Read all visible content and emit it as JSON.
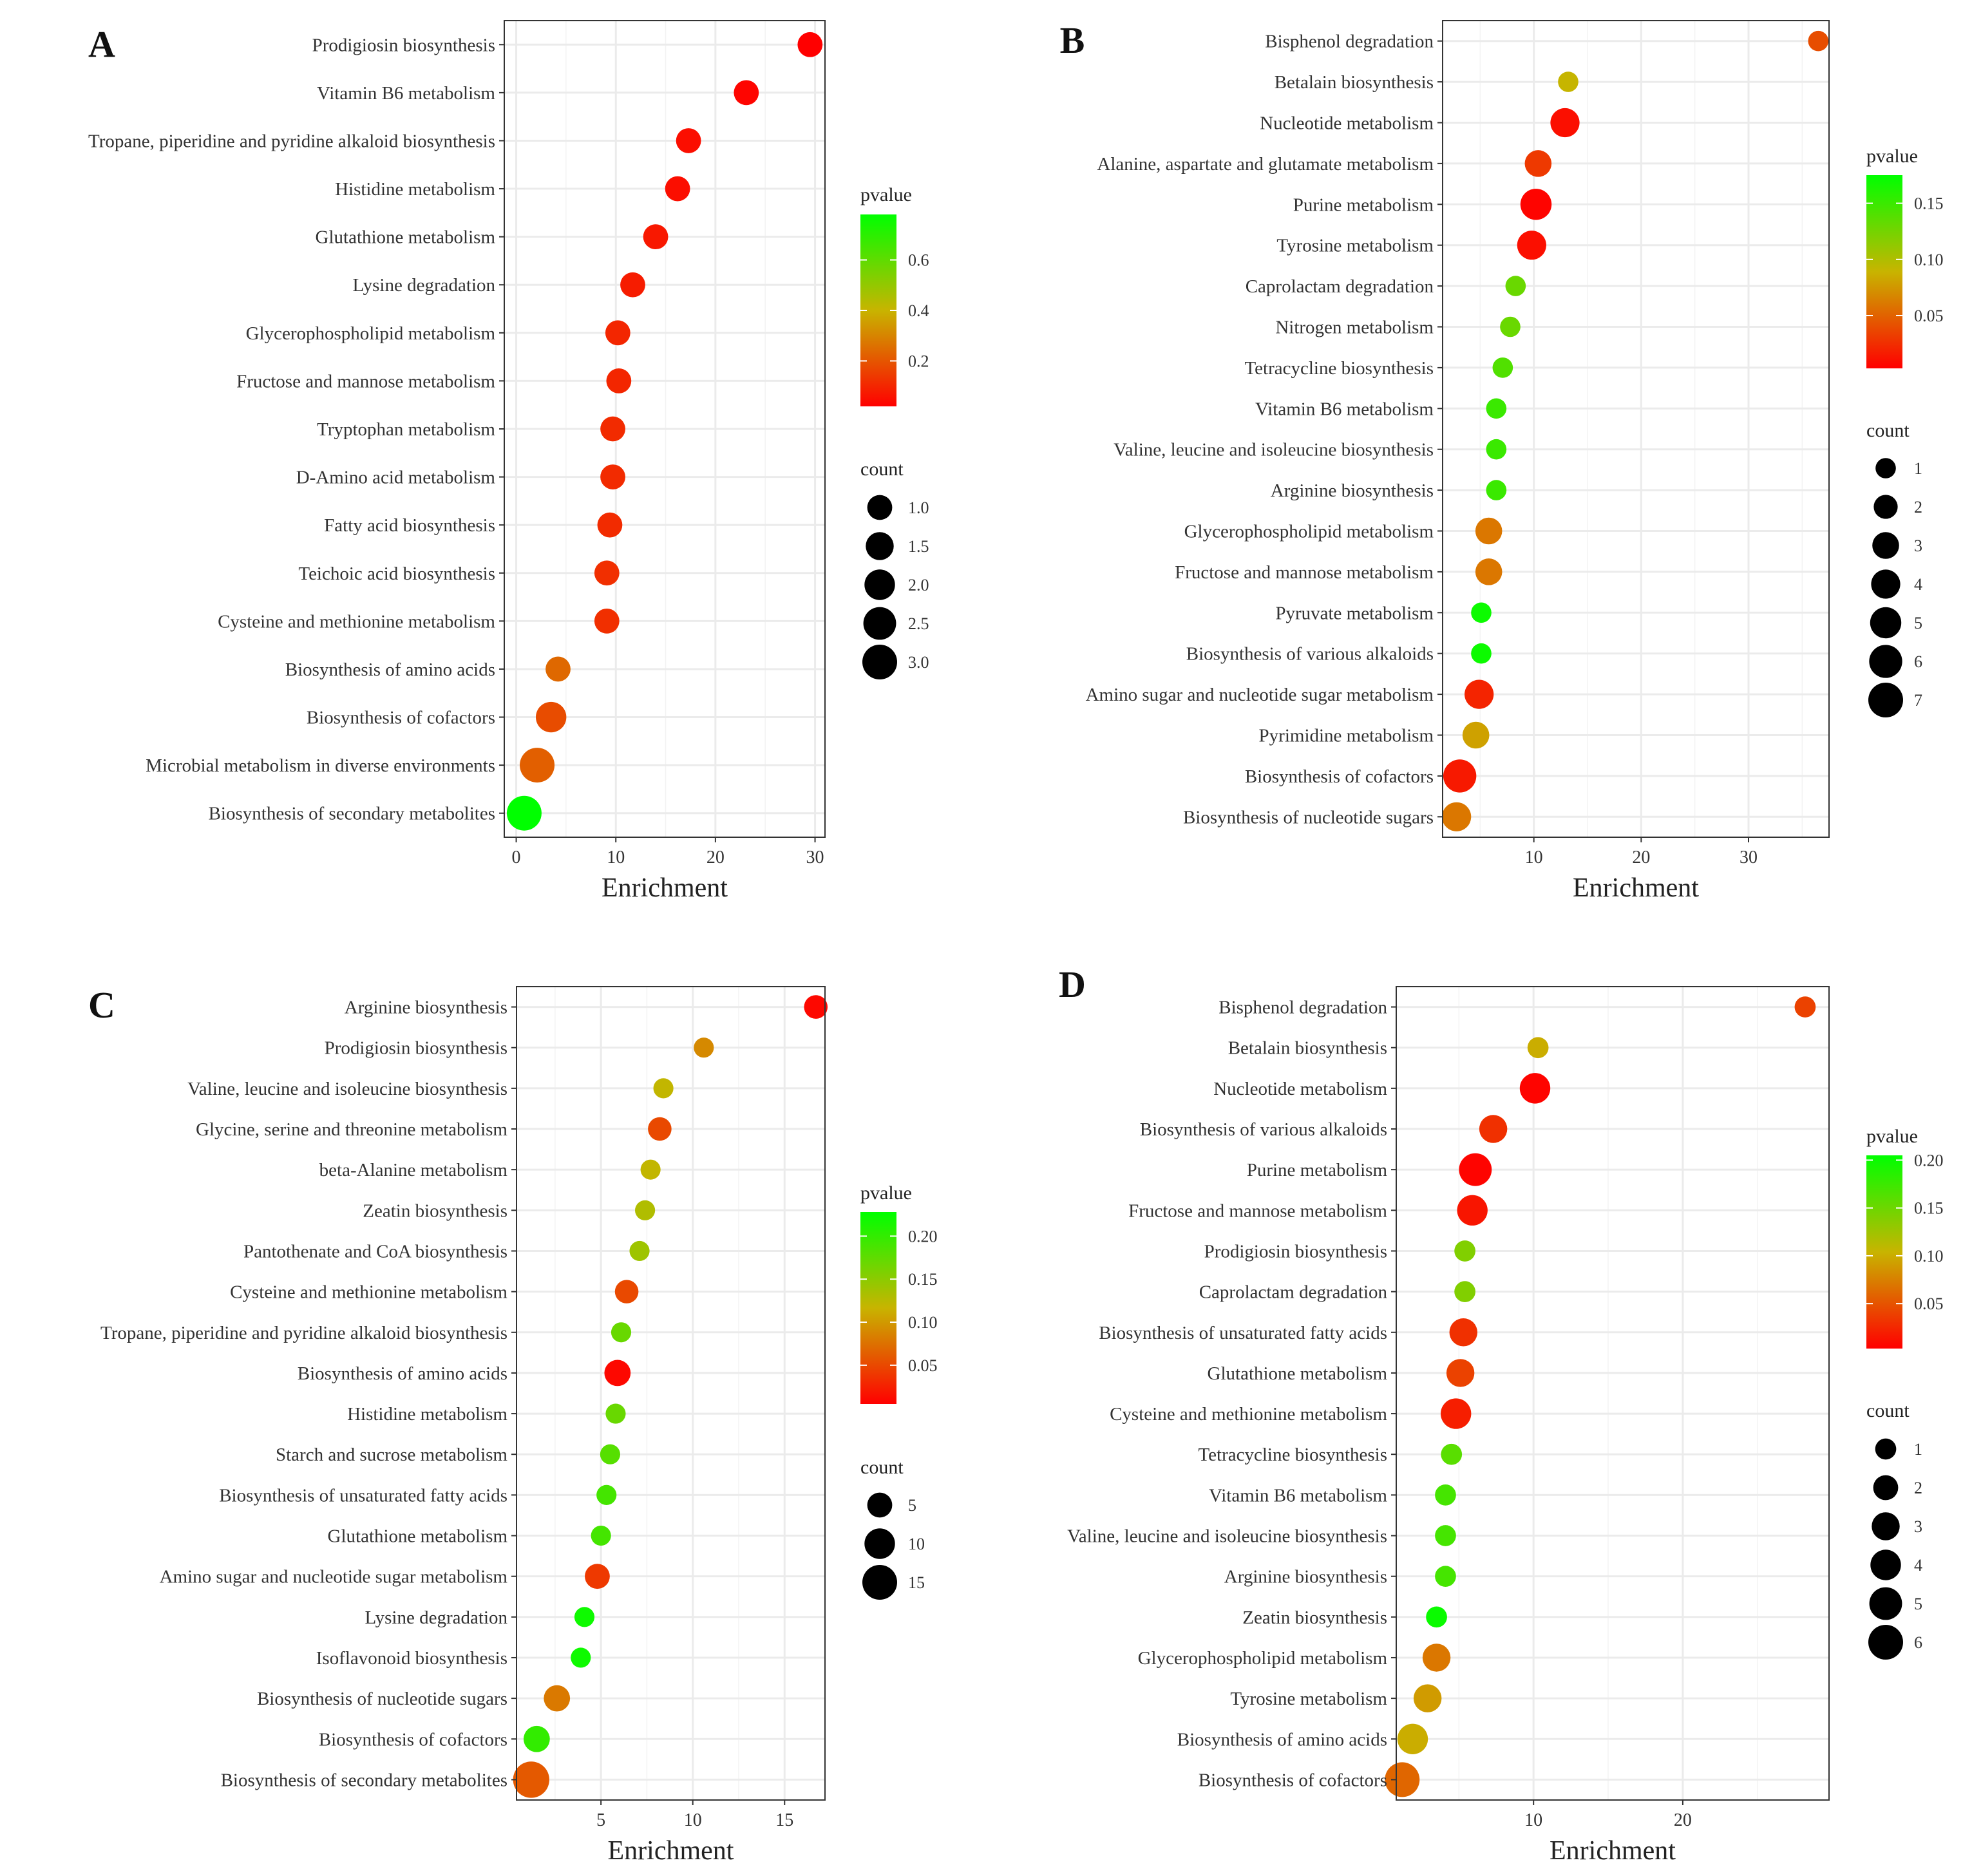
{
  "chart_data": [
    {
      "panel": "A",
      "type": "scatter",
      "xlabel": "Enrichment",
      "xticks": [
        0,
        10,
        20,
        30
      ],
      "xlim": [
        -1.2,
        31
      ],
      "categories": [
        "Prodigiosin biosynthesis",
        "Vitamin B6 metabolism",
        "Tropane, piperidine and pyridine alkaloid biosynthesis",
        "Histidine metabolism",
        "Glutathione metabolism",
        "Lysine degradation",
        "Glycerophospholipid metabolism",
        "Fructose and mannose metabolism",
        "Tryptophan metabolism",
        "D-Amino acid metabolism",
        "Fatty acid biosynthesis",
        "Teichoic acid biosynthesis",
        "Cysteine and methionine metabolism",
        "Biosynthesis of amino acids",
        "Biosynthesis of cofactors",
        "Microbial metabolism in diverse environments",
        "Biosynthesis of secondary metabolites"
      ],
      "enrichment": [
        29.5,
        23.1,
        17.3,
        16.2,
        14.0,
        11.7,
        10.2,
        10.3,
        9.7,
        9.7,
        9.4,
        9.1,
        9.1,
        4.2,
        3.5,
        2.1,
        0.8
      ],
      "count": [
        1,
        1,
        1,
        1,
        1,
        1,
        1,
        1,
        1,
        1,
        1,
        1,
        1,
        1,
        2,
        3,
        3
      ],
      "pvalue": [
        0.02,
        0.03,
        0.05,
        0.05,
        0.07,
        0.08,
        0.1,
        0.1,
        0.11,
        0.11,
        0.11,
        0.12,
        0.12,
        0.24,
        0.18,
        0.22,
        0.78
      ],
      "legend_pvalue": {
        "title": "pvalue",
        "ticks": [
          0.2,
          0.4,
          0.6
        ],
        "tick_labels": [
          "0.2",
          "0.4",
          "0.6"
        ],
        "range": [
          0.02,
          0.78
        ]
      },
      "legend_count": {
        "title": "count",
        "labels": [
          "1.0",
          "1.5",
          "2.0",
          "2.5",
          "3.0"
        ],
        "values": [
          1.0,
          1.5,
          2.0,
          2.5,
          3.0
        ]
      }
    },
    {
      "panel": "B",
      "type": "scatter",
      "xlabel": "Enrichment",
      "xticks": [
        10,
        20,
        30
      ],
      "xlim": [
        1.5,
        37.5
      ],
      "categories": [
        "Bisphenol degradation",
        "Betalain biosynthesis",
        "Nucleotide metabolism",
        "Alanine, aspartate and glutamate metabolism",
        "Purine metabolism",
        "Tyrosine metabolism",
        "Caprolactam degradation",
        "Nitrogen metabolism",
        "Tetracycline biosynthesis",
        "Vitamin B6 metabolism",
        "Valine, leucine and isoleucine biosynthesis",
        "Arginine biosynthesis",
        "Glycerophospholipid metabolism",
        "Fructose and mannose metabolism",
        "Pyruvate metabolism",
        "Biosynthesis of various alkaloids",
        "Amino sugar and nucleotide sugar metabolism",
        "Pyrimidine metabolism",
        "Biosynthesis of cofactors",
        "Biosynthesis of nucleotide sugars"
      ],
      "enrichment": [
        36.5,
        13.2,
        12.9,
        10.4,
        10.2,
        9.8,
        8.3,
        7.8,
        7.1,
        6.5,
        6.5,
        6.5,
        5.8,
        5.8,
        5.1,
        5.1,
        4.9,
        4.6,
        3.1,
        2.8
      ],
      "count": [
        1,
        1,
        4,
        3,
        5,
        4,
        1,
        1,
        1,
        1,
        1,
        1,
        3,
        3,
        1,
        1,
        4,
        3,
        6,
        4
      ],
      "pvalue": [
        0.04,
        0.09,
        0.01,
        0.03,
        0.005,
        0.01,
        0.13,
        0.13,
        0.14,
        0.15,
        0.15,
        0.15,
        0.06,
        0.06,
        0.17,
        0.17,
        0.02,
        0.08,
        0.015,
        0.06
      ],
      "legend_pvalue": {
        "title": "pvalue",
        "ticks": [
          0.05,
          0.1,
          0.15
        ],
        "tick_labels": [
          "0.05",
          "0.10",
          "0.15"
        ],
        "range": [
          0.003,
          0.175
        ]
      },
      "legend_count": {
        "title": "count",
        "labels": [
          "1",
          "2",
          "3",
          "4",
          "5",
          "6",
          "7"
        ],
        "values": [
          1,
          2,
          3,
          4,
          5,
          6,
          7
        ]
      }
    },
    {
      "panel": "C",
      "type": "scatter",
      "xlabel": "Enrichment",
      "xticks": [
        5,
        10,
        15
      ],
      "xlim": [
        0.4,
        17.2
      ],
      "categories": [
        "Arginine biosynthesis",
        "Prodigiosin biosynthesis",
        "Valine, leucine and isoleucine biosynthesis",
        "Glycine, serine and threonine metabolism",
        "beta-Alanine metabolism",
        "Zeatin biosynthesis",
        "Pantothenate and CoA biosynthesis",
        "Cysteine and methionine metabolism",
        "Tropane, piperidine and pyridine alkaloid biosynthesis",
        "Biosynthesis of amino acids",
        "Histidine metabolism",
        "Starch and sucrose metabolism",
        "Biosynthesis of unsaturated fatty acids",
        "Glutathione metabolism",
        "Amino sugar and nucleotide sugar metabolism",
        "Lysine degradation",
        "Isoflavonoid biosynthesis",
        "Biosynthesis of nucleotide sugars",
        "Biosynthesis of cofactors",
        "Biosynthesis of secondary metabolites"
      ],
      "enrichment": [
        16.7,
        10.6,
        8.4,
        8.2,
        7.7,
        7.4,
        7.1,
        6.4,
        6.1,
        5.9,
        5.8,
        5.5,
        5.3,
        5.0,
        4.8,
        4.1,
        3.9,
        2.6,
        1.5,
        1.2
      ],
      "count": [
        4,
        2,
        2,
        4,
        2,
        2,
        2,
        4,
        2,
        6,
        2,
        2,
        2,
        2,
        5,
        2,
        2,
        6,
        6,
        17
      ],
      "pvalue": [
        0.01,
        0.09,
        0.12,
        0.05,
        0.12,
        0.13,
        0.14,
        0.05,
        0.17,
        0.01,
        0.17,
        0.18,
        0.19,
        0.19,
        0.04,
        0.22,
        0.22,
        0.08,
        0.2,
        0.06
      ],
      "legend_pvalue": {
        "title": "pvalue",
        "ticks": [
          0.05,
          0.1,
          0.15,
          0.2
        ],
        "tick_labels": [
          "0.05",
          "0.10",
          "0.15",
          "0.20"
        ],
        "range": [
          0.005,
          0.228
        ]
      },
      "legend_count": {
        "title": "count",
        "labels": [
          "5",
          "10",
          "15"
        ],
        "values": [
          5,
          10,
          15
        ]
      }
    },
    {
      "panel": "D",
      "type": "scatter",
      "xlabel": "Enrichment",
      "xticks": [
        10,
        20
      ],
      "xlim": [
        0.8,
        29.8
      ],
      "categories": [
        "Bisphenol degradation",
        "Betalain biosynthesis",
        "Nucleotide metabolism",
        "Biosynthesis of various alkaloids",
        "Purine metabolism",
        "Fructose and mannose metabolism",
        "Prodigiosin biosynthesis",
        "Caprolactam degradation",
        "Biosynthesis of unsaturated fatty acids",
        "Glutathione metabolism",
        "Cysteine and methionine metabolism",
        "Tetracycline biosynthesis",
        "Vitamin B6 metabolism",
        "Valine, leucine and isoleucine biosynthesis",
        "Arginine biosynthesis",
        "Zeatin biosynthesis",
        "Glycerophospholipid metabolism",
        "Tyrosine metabolism",
        "Biosynthesis of amino acids",
        "Biosynthesis of cofactors"
      ],
      "enrichment": [
        28.2,
        10.3,
        10.1,
        7.3,
        6.1,
        5.9,
        5.4,
        5.4,
        5.3,
        5.1,
        4.8,
        4.5,
        4.1,
        4.1,
        4.1,
        3.5,
        3.5,
        2.9,
        1.9,
        1.2
      ],
      "count": [
        1,
        1,
        4,
        3,
        5,
        4,
        1,
        1,
        3,
        3,
        4,
        1,
        1,
        1,
        1,
        1,
        3,
        3,
        4,
        6
      ],
      "pvalue": [
        0.04,
        0.1,
        0.005,
        0.03,
        0.005,
        0.015,
        0.14,
        0.14,
        0.03,
        0.04,
        0.02,
        0.16,
        0.17,
        0.17,
        0.17,
        0.2,
        0.07,
        0.09,
        0.1,
        0.06
      ],
      "legend_pvalue": {
        "title": "pvalue",
        "ticks": [
          0.05,
          0.1,
          0.15,
          0.2
        ],
        "tick_labels": [
          "0.05",
          "0.10",
          "0.15",
          "0.20"
        ],
        "range": [
          0.003,
          0.205
        ]
      },
      "legend_count": {
        "title": "count",
        "labels": [
          "1",
          "2",
          "3",
          "4",
          "5",
          "6"
        ],
        "values": [
          1,
          2,
          3,
          4,
          5,
          6
        ]
      }
    }
  ],
  "colors": {
    "low": "#ff0000",
    "mid": "#c8b400",
    "high": "#00ff00",
    "grid": "#ebebeb",
    "panel_border": "#333333"
  }
}
